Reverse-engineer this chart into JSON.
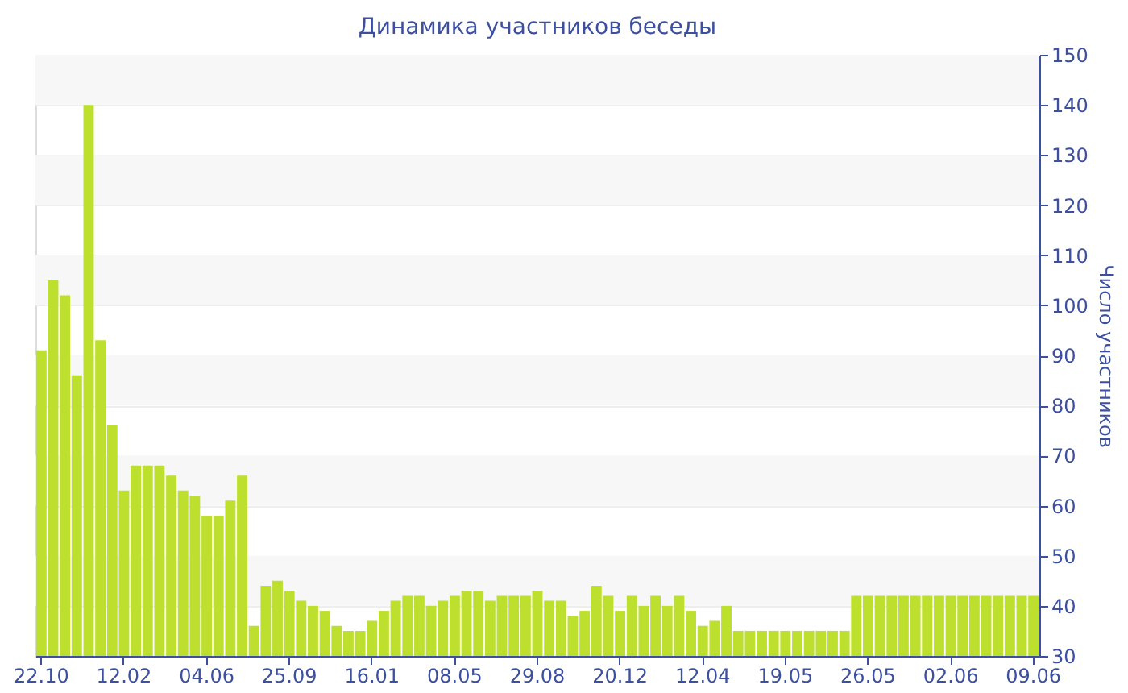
{
  "chart_data": {
    "type": "bar",
    "title": "Динамика участников беседы",
    "ylabel": "Число участников",
    "categories": [
      "22.10",
      null,
      null,
      null,
      null,
      null,
      null,
      "12.02",
      null,
      null,
      null,
      null,
      null,
      null,
      "04.06",
      null,
      null,
      null,
      null,
      null,
      null,
      "25.09",
      null,
      null,
      null,
      null,
      null,
      null,
      "16.01",
      null,
      null,
      null,
      null,
      null,
      null,
      "08.05",
      null,
      null,
      null,
      null,
      null,
      null,
      "29.08",
      null,
      null,
      null,
      null,
      null,
      null,
      "20.12",
      null,
      null,
      null,
      null,
      null,
      null,
      "12.04",
      null,
      null,
      null,
      null,
      null,
      null,
      "19.05",
      null,
      null,
      null,
      null,
      null,
      null,
      "26.05",
      null,
      null,
      null,
      null,
      null,
      null,
      "02.06",
      null,
      null,
      null,
      null,
      null,
      null,
      "09.06"
    ],
    "values": [
      91,
      105,
      102,
      86,
      140,
      93,
      76,
      63,
      68,
      68,
      68,
      66,
      63,
      62,
      58,
      58,
      61,
      66,
      36,
      44,
      45,
      43,
      41,
      40,
      39,
      36,
      35,
      35,
      37,
      39,
      41,
      42,
      42,
      40,
      41,
      42,
      43,
      43,
      41,
      42,
      42,
      42,
      43,
      41,
      41,
      38,
      39,
      44,
      42,
      39,
      42,
      40,
      42,
      40,
      42,
      39,
      36,
      37,
      40,
      35,
      35,
      35,
      35,
      35,
      35,
      35,
      35,
      35,
      35,
      42,
      42,
      42,
      42,
      42,
      42,
      42,
      42,
      42,
      42,
      42,
      42,
      42,
      42,
      42,
      42
    ],
    "color": "#bde02f",
    "ylim": [
      30,
      150
    ],
    "yticks": [
      30,
      40,
      50,
      60,
      70,
      80,
      90,
      100,
      110,
      120,
      130,
      140,
      150
    ],
    "grid": "y"
  }
}
